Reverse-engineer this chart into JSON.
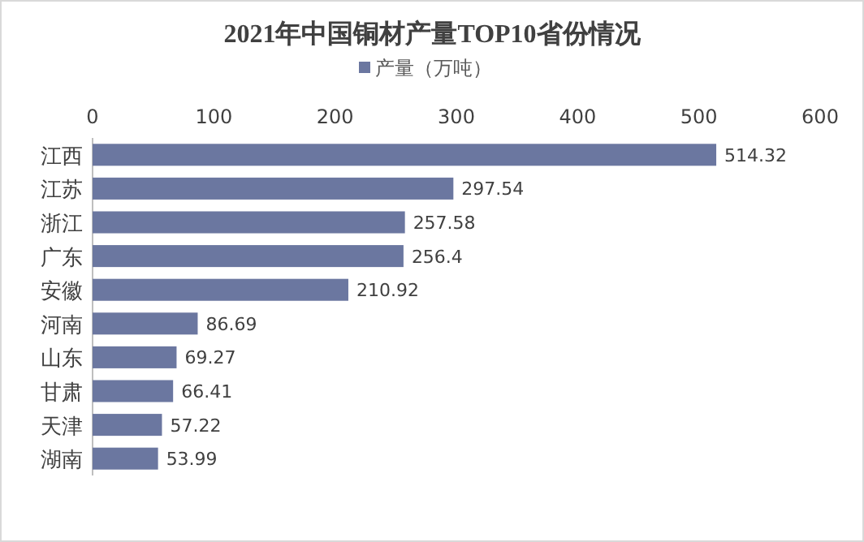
{
  "chart_data": {
    "type": "bar",
    "orientation": "horizontal",
    "title": "2021年中国铜材产量TOP10省份情况",
    "categories": [
      "江西",
      "江苏",
      "浙江",
      "广东",
      "安徽",
      "河南",
      "山东",
      "甘肃",
      "天津",
      "湖南"
    ],
    "series": [
      {
        "name": "产量（万吨）",
        "color": "#6b77a0",
        "values": [
          514.32,
          297.54,
          257.58,
          256.4,
          210.92,
          86.69,
          69.27,
          66.41,
          57.22,
          53.99
        ]
      }
    ],
    "xlim": [
      0,
      600
    ],
    "xticks": [
      0,
      100,
      200,
      300,
      400,
      500,
      600
    ],
    "data_labels": true,
    "legend": "top",
    "grid": false
  }
}
